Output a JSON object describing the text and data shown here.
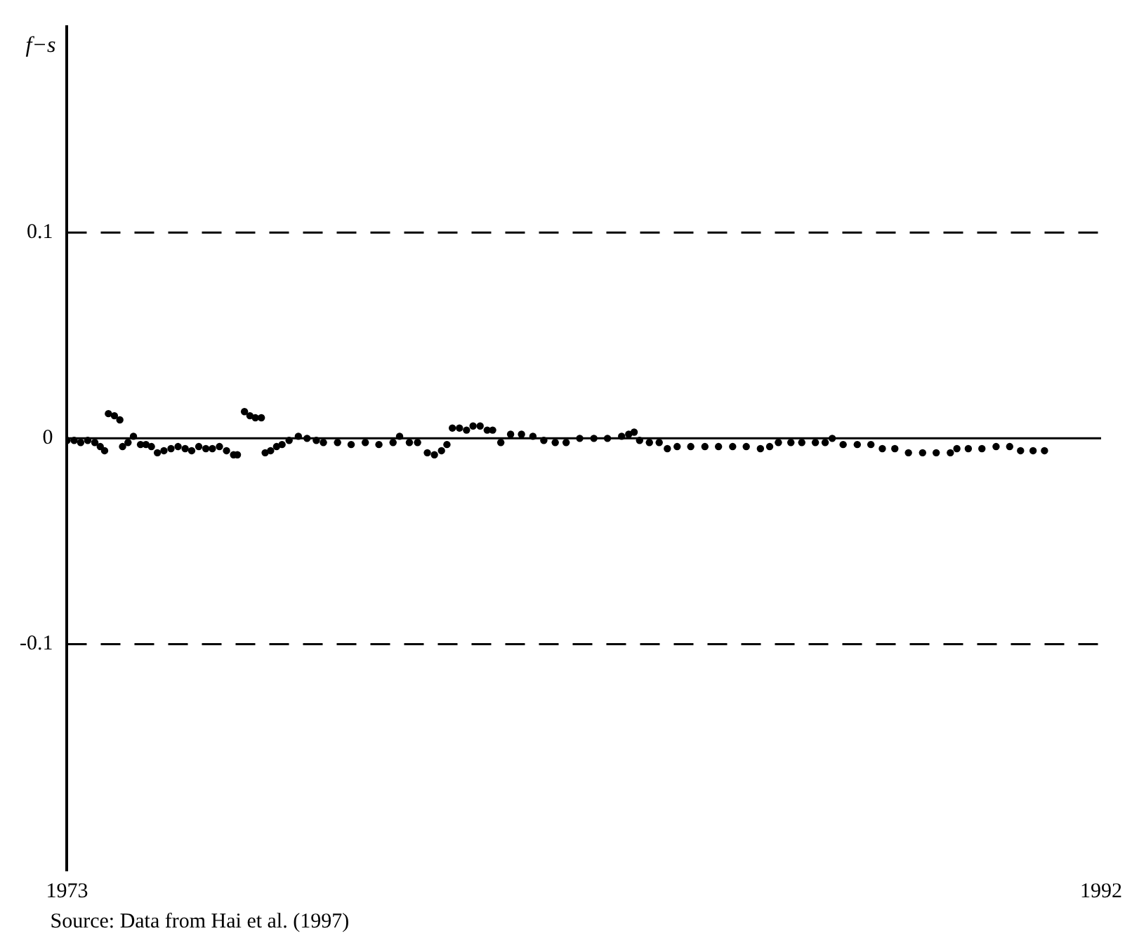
{
  "chart_data": {
    "type": "scatter",
    "ylabel": "f−s",
    "annotations": [
      "Source: Data from Hai et al. (1997)"
    ],
    "x": [
      1973,
      1973.13,
      1973.25,
      1973.38,
      1973.51,
      1973.61,
      1973.69,
      1973.76,
      1973.87,
      1973.97,
      1974.02,
      1974.12,
      1974.22,
      1974.35,
      1974.45,
      1974.55,
      1974.66,
      1974.78,
      1974.91,
      1975.04,
      1975.17,
      1975.29,
      1975.42,
      1975.55,
      1975.67,
      1975.8,
      1975.93,
      1976.06,
      1976.13,
      1976.26,
      1976.36,
      1976.46,
      1976.57,
      1976.64,
      1976.74,
      1976.85,
      1976.95,
      1977.08,
      1977.25,
      1977.41,
      1977.58,
      1977.71,
      1977.97,
      1978.22,
      1978.48,
      1978.73,
      1978.99,
      1979.11,
      1979.29,
      1979.44,
      1979.62,
      1979.75,
      1979.88,
      1979.98,
      1980.08,
      1980.21,
      1980.34,
      1980.46,
      1980.59,
      1980.72,
      1980.82,
      1980.97,
      1981.15,
      1981.35,
      1981.56,
      1981.76,
      1981.97,
      1982.17,
      1982.42,
      1982.68,
      1982.93,
      1983.19,
      1983.32,
      1983.42,
      1983.52,
      1983.7,
      1983.88,
      1984.03,
      1984.21,
      1984.46,
      1984.72,
      1984.97,
      1985.23,
      1985.48,
      1985.74,
      1985.91,
      1986.07,
      1986.3,
      1986.5,
      1986.75,
      1986.93,
      1987.06,
      1987.26,
      1987.52,
      1987.77,
      1987.98,
      1988.21,
      1988.46,
      1988.72,
      1988.97,
      1989.23,
      1989.35,
      1989.56,
      1989.81,
      1990.07,
      1990.32,
      1990.52,
      1990.75,
      1990.96
    ],
    "series": [
      {
        "color": "#000000",
        "values": [
          -0.001,
          -0.001,
          -0.002,
          -0.001,
          -0.002,
          -0.004,
          -0.006,
          0.012,
          0.011,
          0.009,
          -0.004,
          -0.002,
          0.001,
          -0.003,
          -0.003,
          -0.004,
          -0.007,
          -0.006,
          -0.005,
          -0.004,
          -0.005,
          -0.006,
          -0.004,
          -0.005,
          -0.005,
          -0.004,
          -0.006,
          -0.008,
          -0.008,
          0.013,
          0.011,
          0.01,
          0.01,
          -0.007,
          -0.006,
          -0.004,
          -0.003,
          -0.001,
          0.001,
          0,
          -0.001,
          -0.002,
          -0.002,
          -0.003,
          -0.002,
          -0.003,
          -0.002,
          0.001,
          -0.002,
          -0.002,
          -0.007,
          -0.008,
          -0.006,
          -0.003,
          0.005,
          0.005,
          0.004,
          0.006,
          0.006,
          0.004,
          0.004,
          -0.002,
          0.002,
          0.002,
          0.001,
          -0.001,
          -0.002,
          -0.002,
          0,
          0,
          0,
          0.001,
          0.002,
          0.003,
          -0.001,
          -0.002,
          -0.002,
          -0.005,
          -0.004,
          -0.004,
          -0.004,
          -0.004,
          -0.004,
          -0.004,
          -0.005,
          -0.004,
          -0.002,
          -0.002,
          -0.002,
          -0.002,
          -0.002,
          0,
          -0.003,
          -0.003,
          -0.003,
          -0.005,
          -0.005,
          -0.007,
          -0.007,
          -0.007,
          -0.007,
          -0.005,
          -0.005,
          -0.005,
          -0.004,
          -0.004,
          -0.006,
          -0.006,
          -0.006
        ]
      }
    ],
    "xlim": [
      1973,
      1992
    ],
    "xticks": [
      1973,
      1992
    ],
    "ylim": [
      -0.21,
      0.2
    ],
    "yticks": [
      -0.1,
      0,
      0.1
    ],
    "ref_lines": [
      {
        "axis": "y",
        "value": 0.1,
        "line_style": "dashed"
      },
      {
        "axis": "y",
        "value": 0,
        "line_style": "solid"
      },
      {
        "axis": "y",
        "value": -0.1,
        "line_style": "dashed"
      }
    ],
    "marker": "circle",
    "grid": false,
    "legend": false
  }
}
